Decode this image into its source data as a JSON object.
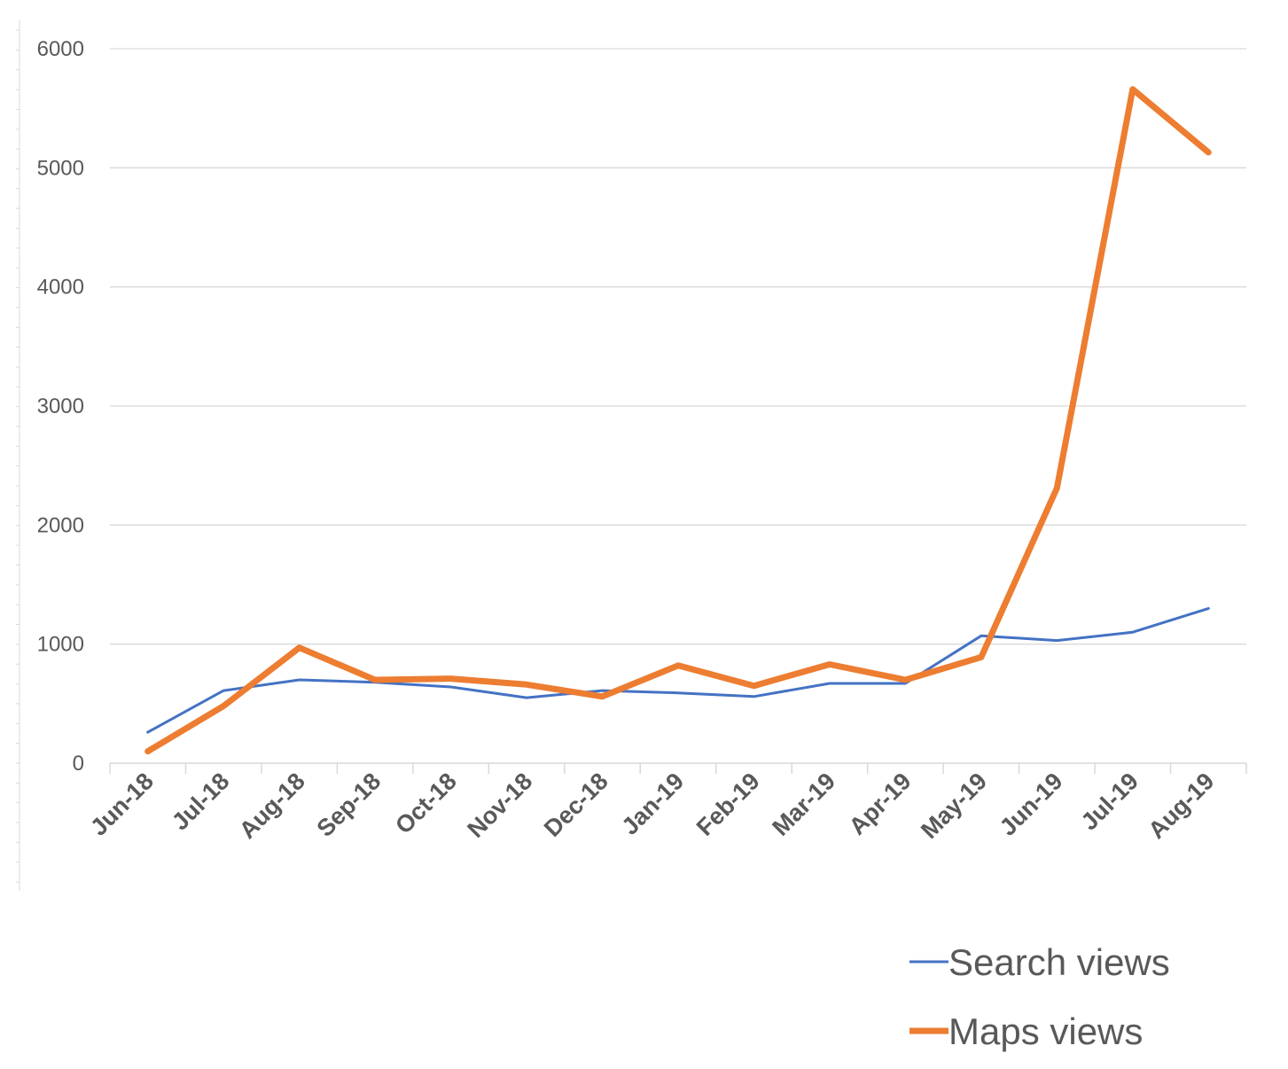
{
  "chart_data": {
    "type": "line",
    "categories": [
      "Jun-18",
      "Jul-18",
      "Aug-18",
      "Sep-18",
      "Oct-18",
      "Nov-18",
      "Dec-18",
      "Jan-19",
      "Feb-19",
      "Mar-19",
      "Apr-19",
      "May-19",
      "Jun-19",
      "Jul-19",
      "Aug-19"
    ],
    "series": [
      {
        "name": "Search views",
        "color": "#4472C4",
        "values": [
          260,
          610,
          700,
          680,
          640,
          550,
          610,
          590,
          560,
          670,
          670,
          1070,
          1030,
          1100,
          1300
        ]
      },
      {
        "name": "Maps views",
        "color": "#ED7D31",
        "values": [
          100,
          480,
          970,
          700,
          710,
          660,
          560,
          820,
          650,
          830,
          700,
          890,
          2310,
          5660,
          5130
        ]
      }
    ],
    "ylim": [
      0,
      6000
    ],
    "yticks": [
      0,
      1000,
      2000,
      3000,
      4000,
      5000,
      6000
    ],
    "grid": true,
    "legend": "bottom-right",
    "title": "",
    "xlabel": "",
    "ylabel": ""
  }
}
